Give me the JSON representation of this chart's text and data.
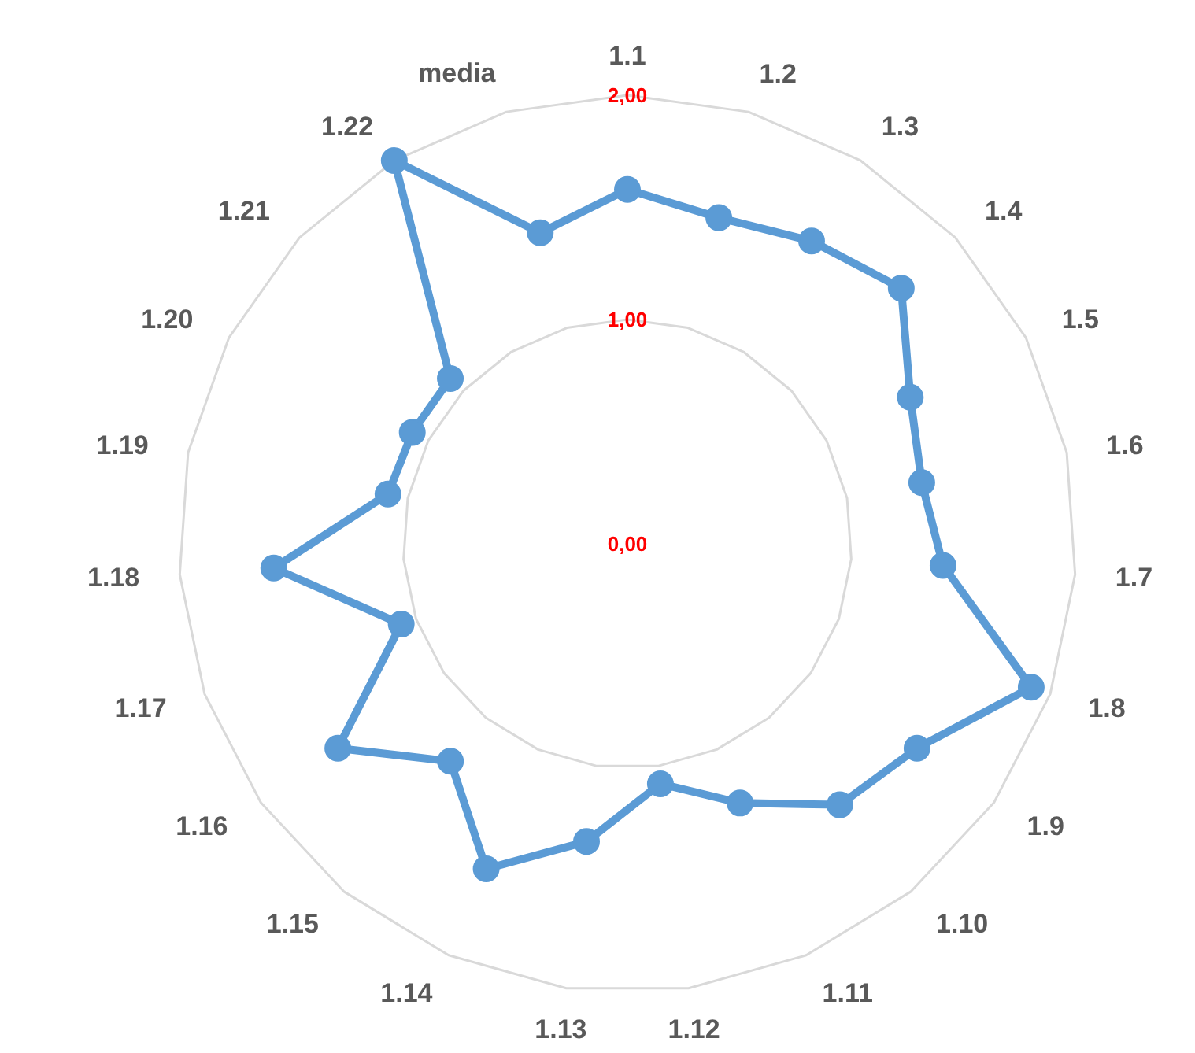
{
  "chart_data": {
    "type": "radar",
    "categories": [
      "1.1",
      "1.2",
      "1.3",
      "1.4",
      "1.5",
      "1.6",
      "1.7",
      "1.8",
      "1.9",
      "1.10",
      "1.11",
      "1.12",
      "1.13",
      "1.14",
      "1.15",
      "1.16",
      "1.17",
      "1.18",
      "1.19",
      "1.20",
      "1.21",
      "1.22",
      "media"
    ],
    "series": [
      {
        "color": "#5b9bd5",
        "values": [
          1.58,
          1.51,
          1.58,
          1.67,
          1.42,
          1.34,
          1.41,
          1.91,
          1.58,
          1.5,
          1.26,
          1.08,
          1.34,
          1.58,
          1.25,
          1.58,
          1.07,
          1.58,
          1.09,
          1.08,
          1.08,
          2.0,
          1.44
        ]
      }
    ],
    "ylim": [
      0,
      2
    ],
    "yticks": [
      {
        "value": 0,
        "label": "0,00"
      },
      {
        "value": 1,
        "label": "1,00"
      },
      {
        "value": 2,
        "label": "2,00"
      }
    ],
    "grid": true,
    "marker": "circle",
    "line_style": "solid"
  }
}
